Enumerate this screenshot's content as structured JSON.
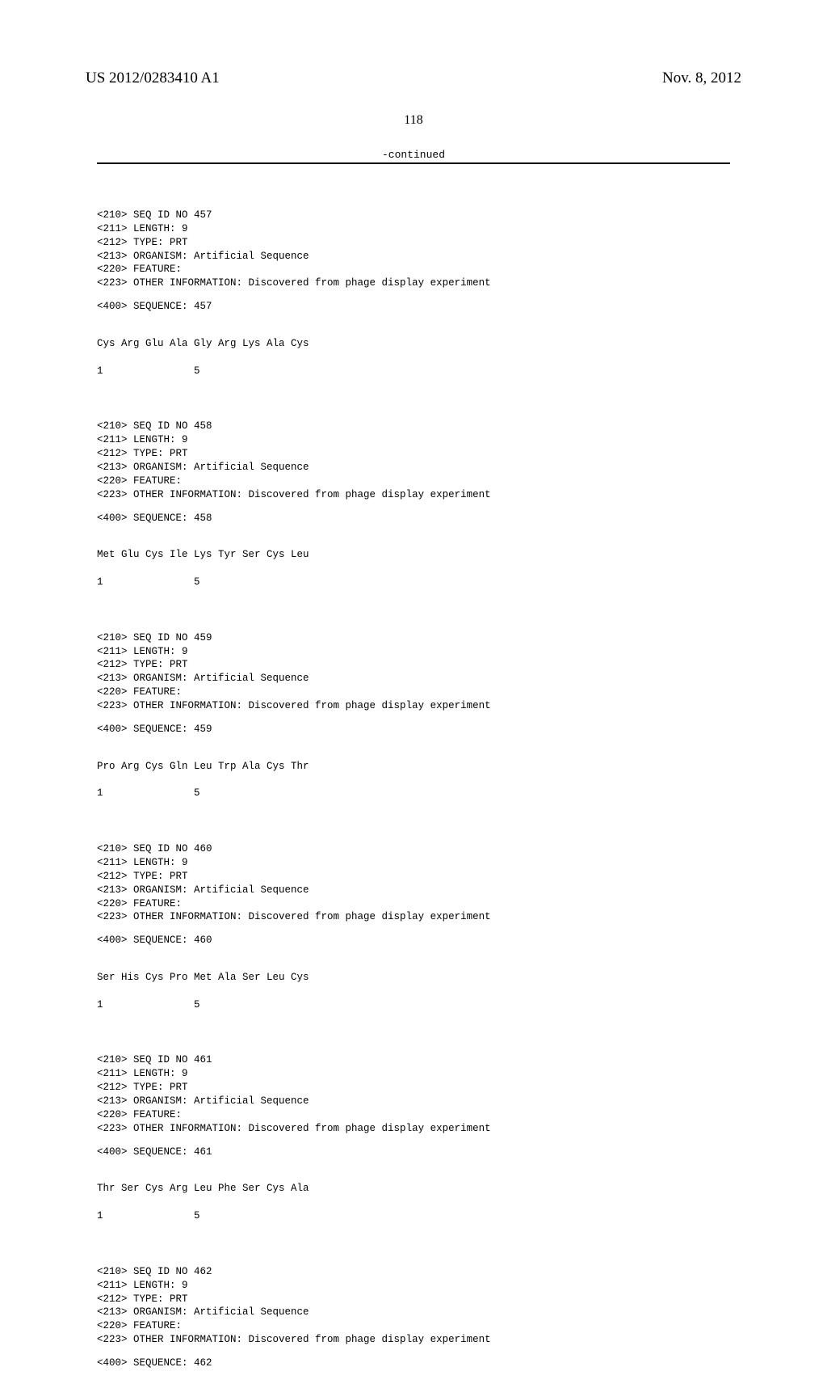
{
  "header": {
    "pub_number": "US 2012/0283410 A1",
    "pub_date": "Nov. 8, 2012"
  },
  "page_number": "118",
  "continued_label": "-continued",
  "entries": [
    {
      "id": "457",
      "length": "9",
      "type": "PRT",
      "organism": "Artificial Sequence",
      "other_info": "Discovered from phage display experiment",
      "sequence": "Cys Arg Glu Ala Gly Arg Lys Ala Cys",
      "pos": "1               5"
    },
    {
      "id": "458",
      "length": "9",
      "type": "PRT",
      "organism": "Artificial Sequence",
      "other_info": "Discovered from phage display experiment",
      "sequence": "Met Glu Cys Ile Lys Tyr Ser Cys Leu",
      "pos": "1               5"
    },
    {
      "id": "459",
      "length": "9",
      "type": "PRT",
      "organism": "Artificial Sequence",
      "other_info": "Discovered from phage display experiment",
      "sequence": "Pro Arg Cys Gln Leu Trp Ala Cys Thr",
      "pos": "1               5"
    },
    {
      "id": "460",
      "length": "9",
      "type": "PRT",
      "organism": "Artificial Sequence",
      "other_info": "Discovered from phage display experiment",
      "sequence": "Ser His Cys Pro Met Ala Ser Leu Cys",
      "pos": "1               5"
    },
    {
      "id": "461",
      "length": "9",
      "type": "PRT",
      "organism": "Artificial Sequence",
      "other_info": "Discovered from phage display experiment",
      "sequence": "Thr Ser Cys Arg Leu Phe Ser Cys Ala",
      "pos": "1               5"
    },
    {
      "id": "462",
      "length": "9",
      "type": "PRT",
      "organism": "Artificial Sequence",
      "other_info": "Discovered from phage display experiment",
      "sequence": "",
      "pos": ""
    }
  ],
  "field_labels": {
    "seq_id": "<210> SEQ ID NO ",
    "length": "<211> LENGTH: ",
    "type": "<212> TYPE: ",
    "organism": "<213> ORGANISM: ",
    "feature": "<220> FEATURE:",
    "other_info": "<223> OTHER INFORMATION: ",
    "sequence_label": "<400> SEQUENCE: "
  }
}
